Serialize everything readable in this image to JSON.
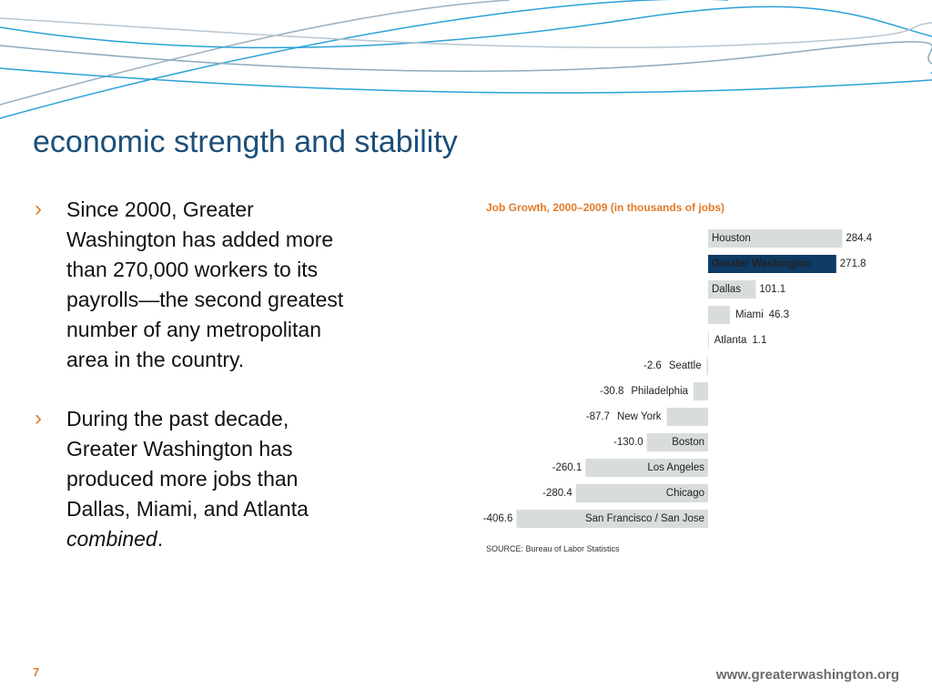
{
  "slide": {
    "title": "economic strength and stability",
    "bullets": [
      {
        "lines": [
          "Since 2000, Greater",
          "Washington has added more",
          "than 270,000 workers to its",
          "payrolls—the second greatest",
          "number of any metropolitan",
          "area in the country."
        ]
      },
      {
        "lines": [
          "During the past decade,",
          "Greater Washington has",
          "produced more jobs than",
          "Dallas, Miami, and Atlanta"
        ],
        "emphasis": "combined",
        "end": "."
      }
    ],
    "page_number": "7",
    "url": "www.greaterwashington.org"
  },
  "chart_data": {
    "type": "bar",
    "orientation": "horizontal",
    "title": "Job Growth, 2000–2009 (in thousands of jobs)",
    "categories": [
      "Houston",
      "Greater Washington",
      "Dallas",
      "Miami",
      "Atlanta",
      "Seattle",
      "Philadelphia",
      "New York",
      "Boston",
      "Los Angeles",
      "Chicago",
      "San Francisco / San Jose"
    ],
    "values": [
      284.4,
      271.8,
      101.1,
      46.3,
      1.1,
      -2.6,
      -30.8,
      -87.7,
      -130.0,
      -260.1,
      -280.4,
      -406.6
    ],
    "value_labels": [
      "284.4",
      "271.8",
      "101.1",
      "46.3",
      "1.1",
      "-2.6",
      "-30.8",
      "-87.7",
      "-130.0",
      "-260.1",
      "-280.4",
      "-406.6"
    ],
    "colors": [
      "#d8dcdc",
      "#0e3a64",
      "#d8dcdc",
      "#d8dcdc",
      "#d8dcdc",
      "#d8dcdc",
      "#d8dcdc",
      "#d8dcdc",
      "#d8dcdc",
      "#d8dcdc",
      "#d8dcdc",
      "#d8dcdc"
    ],
    "source": "SOURCE:  Bureau of Labor Statistics"
  }
}
